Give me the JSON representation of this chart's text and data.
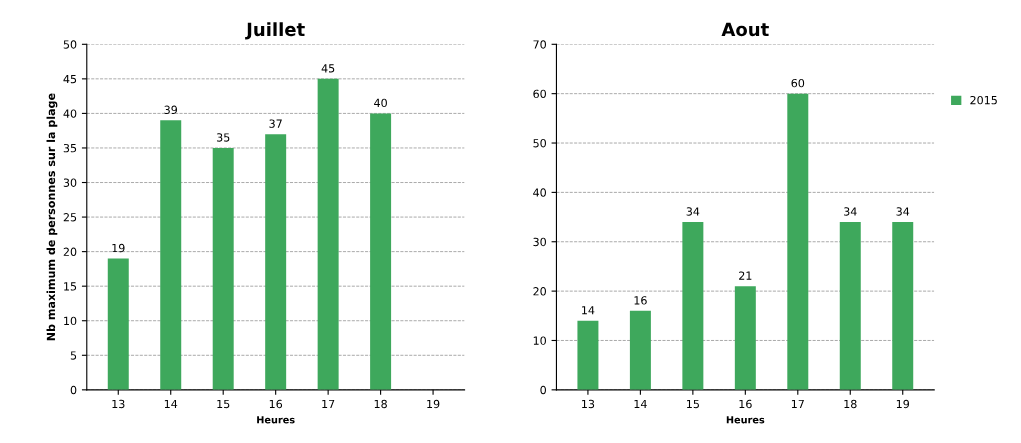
{
  "chart_data": [
    {
      "type": "bar",
      "title": "Juillet",
      "xlabel": "Heures",
      "ylabel": "Nb maximum de personnes sur la plage",
      "categories": [
        "13",
        "14",
        "15",
        "16",
        "17",
        "18",
        "19"
      ],
      "series": [
        {
          "color": "#3ea85c",
          "values": [
            19,
            39,
            35,
            37,
            45,
            40,
            null
          ]
        }
      ],
      "ylim": [
        0,
        50
      ],
      "yticks": [
        0,
        5,
        10,
        15,
        20,
        25,
        30,
        35,
        40,
        45,
        50
      ],
      "grid": "y",
      "data_labels": true
    },
    {
      "type": "bar",
      "title": "Aout",
      "xlabel": "Heures",
      "categories": [
        "13",
        "14",
        "15",
        "16",
        "17",
        "18",
        "19"
      ],
      "series": [
        {
          "name": "2015",
          "color": "#3ea85c",
          "values": [
            14,
            16,
            34,
            21,
            60,
            34,
            34
          ]
        }
      ],
      "ylim": [
        0,
        70
      ],
      "yticks": [
        0,
        10,
        20,
        30,
        40,
        50,
        60,
        70
      ],
      "grid": "y",
      "data_labels": true,
      "legend": "right"
    }
  ]
}
